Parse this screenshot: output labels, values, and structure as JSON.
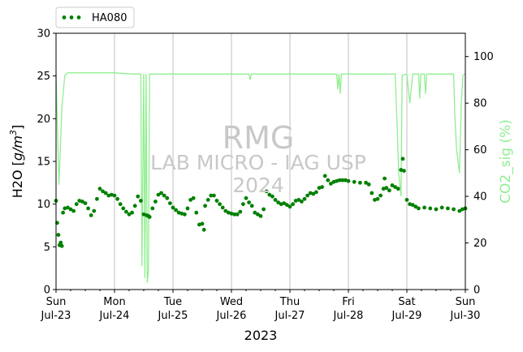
{
  "chart_data": {
    "type": "line",
    "xlabel": "2023",
    "ylabel": "H2O [g/m³]",
    "ylabel_main": "H2O [",
    "ylabel_unit": "g/m",
    "ylabel_exp": "3",
    "ylabel_close": "]",
    "y2label": "CO2_sig (%)",
    "ylim": [
      0,
      30
    ],
    "y2lim": [
      0,
      110
    ],
    "xlim": [
      "2023-07-23",
      "2023-07-30"
    ],
    "grid": "vertical",
    "legend_placement": "top-left, above plot",
    "x_ticks": [
      {
        "day": "Sun",
        "date": "Jul-23"
      },
      {
        "day": "Mon",
        "date": "Jul-24"
      },
      {
        "day": "Tue",
        "date": "Jul-25"
      },
      {
        "day": "Wed",
        "date": "Jul-26"
      },
      {
        "day": "Thu",
        "date": "Jul-27"
      },
      {
        "day": "Fri",
        "date": "Jul-28"
      },
      {
        "day": "Sat",
        "date": "Jul-29"
      },
      {
        "day": "Sun",
        "date": "Jul-30"
      }
    ],
    "y_ticks": [
      0,
      5,
      10,
      15,
      20,
      25,
      30
    ],
    "y2_ticks": [
      0,
      20,
      40,
      60,
      80,
      100
    ],
    "watermark": {
      "line1": "RMG",
      "line2": "LAB MICRO - IAG USP",
      "line3": "2024"
    },
    "colors": {
      "h2o": "#008000",
      "co2_sig": "#90ee90"
    },
    "series": [
      {
        "name": "HA080",
        "axis": "left",
        "style": "dotted markers",
        "x_unit": "days since Jul-23 00:00",
        "points": [
          [
            0.0,
            10.4
          ],
          [
            0.02,
            7.8
          ],
          [
            0.04,
            6.4
          ],
          [
            0.06,
            5.2
          ],
          [
            0.08,
            5.5
          ],
          [
            0.1,
            5.1
          ],
          [
            0.12,
            9.0
          ],
          [
            0.15,
            9.5
          ],
          [
            0.2,
            9.6
          ],
          [
            0.25,
            9.4
          ],
          [
            0.3,
            9.2
          ],
          [
            0.35,
            10.0
          ],
          [
            0.4,
            10.4
          ],
          [
            0.45,
            10.3
          ],
          [
            0.5,
            10.1
          ],
          [
            0.55,
            9.5
          ],
          [
            0.6,
            8.7
          ],
          [
            0.65,
            9.2
          ],
          [
            0.7,
            10.6
          ],
          [
            0.75,
            11.8
          ],
          [
            0.8,
            11.5
          ],
          [
            0.85,
            11.3
          ],
          [
            0.9,
            11.0
          ],
          [
            0.95,
            11.1
          ],
          [
            1.0,
            11.0
          ],
          [
            1.05,
            10.6
          ],
          [
            1.1,
            10.0
          ],
          [
            1.15,
            9.5
          ],
          [
            1.2,
            9.1
          ],
          [
            1.25,
            8.8
          ],
          [
            1.3,
            9.0
          ],
          [
            1.35,
            9.8
          ],
          [
            1.4,
            10.9
          ],
          [
            1.45,
            10.4
          ],
          [
            1.5,
            8.8
          ],
          [
            1.55,
            8.7
          ],
          [
            1.58,
            8.6
          ],
          [
            1.6,
            8.5
          ],
          [
            1.65,
            9.5
          ],
          [
            1.7,
            10.3
          ],
          [
            1.75,
            11.1
          ],
          [
            1.8,
            11.3
          ],
          [
            1.85,
            11.0
          ],
          [
            1.9,
            10.7
          ],
          [
            1.95,
            10.1
          ],
          [
            2.0,
            9.6
          ],
          [
            2.05,
            9.3
          ],
          [
            2.1,
            9.0
          ],
          [
            2.15,
            8.9
          ],
          [
            2.2,
            8.8
          ],
          [
            2.25,
            9.5
          ],
          [
            2.3,
            10.5
          ],
          [
            2.35,
            10.7
          ],
          [
            2.4,
            9.0
          ],
          [
            2.45,
            7.6
          ],
          [
            2.5,
            7.7
          ],
          [
            2.53,
            7.0
          ],
          [
            2.55,
            9.8
          ],
          [
            2.6,
            10.5
          ],
          [
            2.65,
            11.0
          ],
          [
            2.7,
            11.0
          ],
          [
            2.75,
            10.4
          ],
          [
            2.8,
            10.0
          ],
          [
            2.85,
            9.6
          ],
          [
            2.9,
            9.2
          ],
          [
            2.95,
            9.0
          ],
          [
            3.0,
            8.9
          ],
          [
            3.05,
            8.8
          ],
          [
            3.1,
            8.8
          ],
          [
            3.15,
            9.1
          ],
          [
            3.2,
            10.0
          ],
          [
            3.25,
            10.7
          ],
          [
            3.3,
            10.2
          ],
          [
            3.35,
            9.8
          ],
          [
            3.4,
            9.0
          ],
          [
            3.45,
            8.8
          ],
          [
            3.5,
            8.6
          ],
          [
            3.55,
            9.4
          ],
          [
            3.6,
            11.5
          ],
          [
            3.65,
            11.1
          ],
          [
            3.7,
            10.9
          ],
          [
            3.75,
            10.5
          ],
          [
            3.8,
            10.2
          ],
          [
            3.85,
            10.0
          ],
          [
            3.9,
            10.1
          ],
          [
            3.95,
            9.9
          ],
          [
            4.0,
            9.7
          ],
          [
            4.05,
            10.0
          ],
          [
            4.1,
            10.4
          ],
          [
            4.15,
            10.5
          ],
          [
            4.2,
            10.3
          ],
          [
            4.25,
            10.6
          ],
          [
            4.3,
            11.0
          ],
          [
            4.35,
            11.3
          ],
          [
            4.4,
            11.2
          ],
          [
            4.45,
            11.4
          ],
          [
            4.5,
            11.9
          ],
          [
            4.55,
            12.0
          ],
          [
            4.6,
            13.3
          ],
          [
            4.65,
            12.8
          ],
          [
            4.7,
            12.4
          ],
          [
            4.75,
            12.6
          ],
          [
            4.8,
            12.7
          ],
          [
            4.85,
            12.8
          ],
          [
            4.9,
            12.8
          ],
          [
            4.95,
            12.8
          ],
          [
            5.0,
            12.7
          ],
          [
            5.1,
            12.6
          ],
          [
            5.2,
            12.5
          ],
          [
            5.3,
            12.5
          ],
          [
            5.35,
            12.3
          ],
          [
            5.4,
            11.3
          ],
          [
            5.45,
            10.5
          ],
          [
            5.5,
            10.6
          ],
          [
            5.55,
            11.0
          ],
          [
            5.6,
            11.8
          ],
          [
            5.62,
            13.0
          ],
          [
            5.65,
            11.9
          ],
          [
            5.7,
            11.6
          ],
          [
            5.75,
            12.2
          ],
          [
            5.8,
            12.0
          ],
          [
            5.85,
            11.8
          ],
          [
            5.9,
            14.0
          ],
          [
            5.93,
            15.3
          ],
          [
            5.95,
            13.9
          ],
          [
            6.0,
            10.5
          ],
          [
            6.05,
            10.0
          ],
          [
            6.1,
            9.9
          ],
          [
            6.15,
            9.7
          ],
          [
            6.2,
            9.5
          ],
          [
            6.3,
            9.6
          ],
          [
            6.4,
            9.5
          ],
          [
            6.5,
            9.4
          ],
          [
            6.6,
            9.6
          ],
          [
            6.7,
            9.5
          ],
          [
            6.8,
            9.4
          ],
          [
            6.9,
            9.2
          ],
          [
            6.95,
            9.4
          ],
          [
            7.0,
            9.5
          ]
        ]
      },
      {
        "name": "",
        "axis": "right",
        "style": "line",
        "x_unit": "days since Jul-23 00:00",
        "points": [
          [
            0.0,
            92.5
          ],
          [
            0.05,
            45
          ],
          [
            0.1,
            78
          ],
          [
            0.15,
            92
          ],
          [
            0.2,
            93
          ],
          [
            0.5,
            93
          ],
          [
            1.0,
            93
          ],
          [
            1.3,
            92.5
          ],
          [
            1.45,
            92.5
          ],
          [
            1.47,
            10
          ],
          [
            1.5,
            92.5
          ],
          [
            1.52,
            5
          ],
          [
            1.54,
            92.5
          ],
          [
            1.56,
            3
          ],
          [
            1.58,
            8
          ],
          [
            1.6,
            92.5
          ],
          [
            2.0,
            92.5
          ],
          [
            2.5,
            92.5
          ],
          [
            3.0,
            92.5
          ],
          [
            3.3,
            92.5
          ],
          [
            3.32,
            90
          ],
          [
            3.34,
            92.5
          ],
          [
            3.8,
            92.5
          ],
          [
            4.5,
            92.5
          ],
          [
            4.8,
            92.5
          ],
          [
            4.82,
            86
          ],
          [
            4.84,
            92.5
          ],
          [
            4.86,
            84
          ],
          [
            4.88,
            92.5
          ],
          [
            5.3,
            92.5
          ],
          [
            5.8,
            92.5
          ],
          [
            5.82,
            80
          ],
          [
            5.84,
            65
          ],
          [
            5.86,
            50
          ],
          [
            5.9,
            40
          ],
          [
            5.92,
            92
          ],
          [
            6.0,
            92.5
          ],
          [
            6.05,
            80
          ],
          [
            6.1,
            92.5
          ],
          [
            6.2,
            92.5
          ],
          [
            6.22,
            82
          ],
          [
            6.24,
            92.5
          ],
          [
            6.3,
            92.5
          ],
          [
            6.32,
            84
          ],
          [
            6.34,
            92.5
          ],
          [
            6.8,
            92.5
          ],
          [
            6.82,
            75
          ],
          [
            6.85,
            60
          ],
          [
            6.9,
            50
          ],
          [
            6.93,
            80
          ],
          [
            6.96,
            92
          ],
          [
            7.0,
            92.5
          ]
        ]
      }
    ],
    "legend": [
      {
        "label": "HA080"
      }
    ]
  }
}
